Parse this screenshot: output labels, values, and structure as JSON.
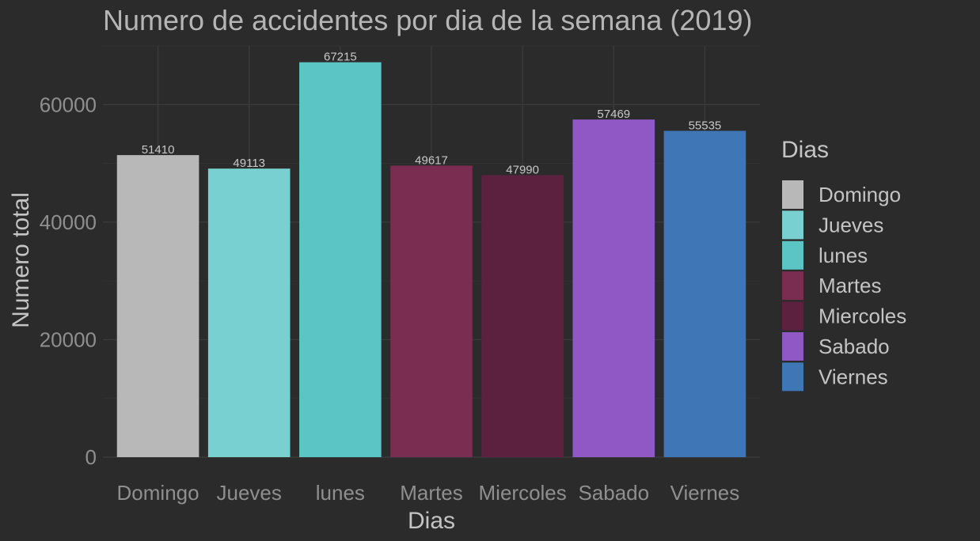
{
  "chart_data": {
    "type": "bar",
    "title": "Numero de accidentes por dia de la semana (2019)",
    "xlabel": "Dias",
    "ylabel": "Numero total",
    "categories": [
      "Domingo",
      "Jueves",
      "lunes",
      "Martes",
      "Miercoles",
      "Sabado",
      "Viernes"
    ],
    "values": [
      51410,
      49113,
      67215,
      49617,
      47990,
      57469,
      55535
    ],
    "data_labels": [
      "51410",
      "49113",
      "67215",
      "49617",
      "47990",
      "57469",
      "55535"
    ],
    "colors": [
      "#b8b8b8",
      "#79d0d0",
      "#5bc4c4",
      "#7a2d51",
      "#5c213e",
      "#8f58c4",
      "#3f76b5"
    ],
    "ylim": [
      0,
      70000
    ],
    "yticks": [
      0,
      20000,
      40000,
      60000
    ],
    "ytick_labels": [
      "0",
      "20000",
      "40000",
      "60000"
    ],
    "grid": true,
    "legend": {
      "title": "Dias",
      "placement": "right",
      "entries": [
        "Domingo",
        "Jueves",
        "lunes",
        "Martes",
        "Miercoles",
        "Sabado",
        "Viernes"
      ]
    },
    "background": "#2b2b2b"
  }
}
